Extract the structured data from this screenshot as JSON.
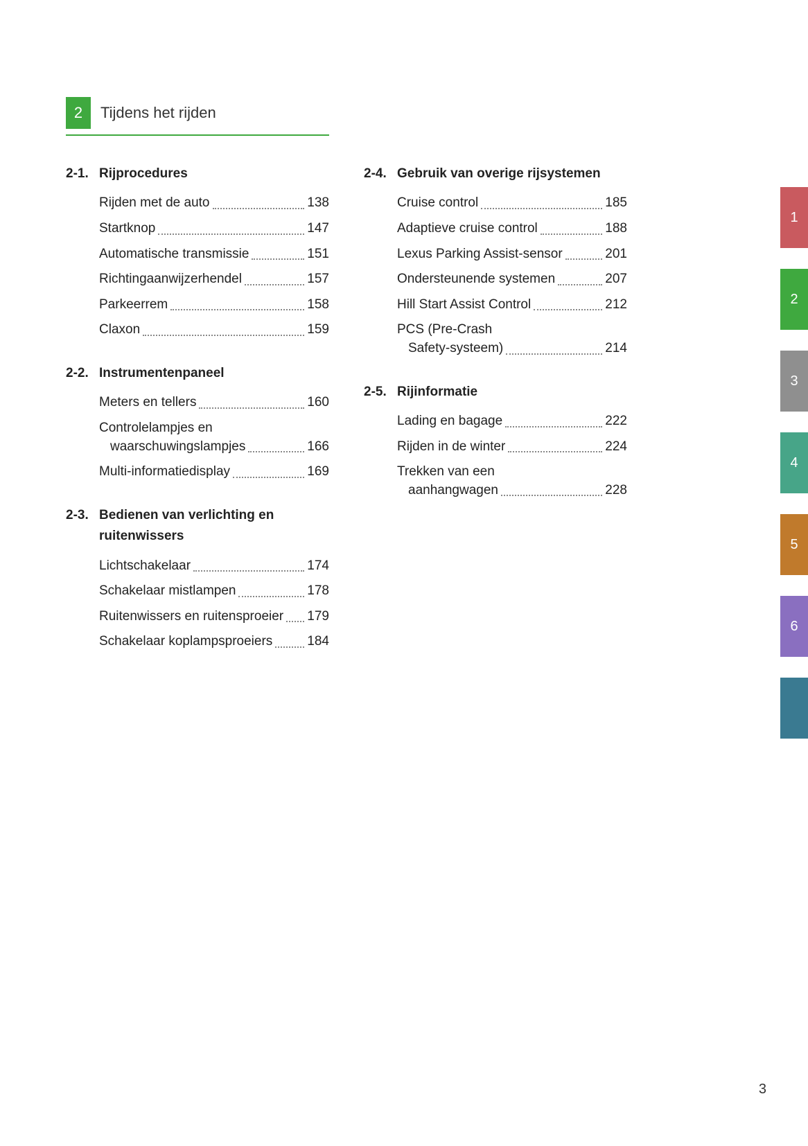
{
  "chapter": {
    "number": "2",
    "title": "Tijdens het rijden"
  },
  "accent": "#3fa93f",
  "page_number": "3",
  "columns": [
    {
      "sections": [
        {
          "num": "2-1.",
          "title": "Rijprocedures",
          "entries": [
            {
              "label": "Rijden met de auto",
              "page": "138"
            },
            {
              "label": "Startknop",
              "page": "147"
            },
            {
              "label": "Automatische transmissie",
              "page": "151"
            },
            {
              "label": "Richtingaanwijzerhendel",
              "page": "157"
            },
            {
              "label": "Parkeerrem",
              "page": "158"
            },
            {
              "label": "Claxon",
              "page": "159"
            }
          ]
        },
        {
          "num": "2-2.",
          "title": "Instrumentenpaneel",
          "entries": [
            {
              "label": "Meters en tellers",
              "page": "160"
            },
            {
              "label": "Controlelampjes en",
              "cont": "waarschuwingslampjes",
              "page": "166"
            },
            {
              "label": "Multi-informatiedisplay",
              "page": "169"
            }
          ]
        },
        {
          "num": "2-3.",
          "title": "Bedienen van verlichting en ruitenwissers",
          "entries": [
            {
              "label": "Lichtschakelaar",
              "page": "174"
            },
            {
              "label": "Schakelaar mistlampen",
              "page": "178"
            },
            {
              "label": "Ruitenwissers en ruitensproeier",
              "page": "179"
            },
            {
              "label": "Schakelaar koplampsproeiers",
              "page": "184"
            }
          ]
        }
      ]
    },
    {
      "sections": [
        {
          "num": "2-4.",
          "title": "Gebruik van overige rijsystemen",
          "entries": [
            {
              "label": "Cruise control",
              "page": "185"
            },
            {
              "label": "Adaptieve cruise control",
              "page": "188"
            },
            {
              "label": "Lexus Parking Assist-sensor",
              "page": "201"
            },
            {
              "label": "Ondersteunende systemen",
              "page": "207"
            },
            {
              "label": "Hill Start Assist Control",
              "page": "212"
            },
            {
              "label": "PCS (Pre-Crash",
              "cont": "Safety-systeem)",
              "page": "214"
            }
          ]
        },
        {
          "num": "2-5.",
          "title": "Rijinformatie",
          "entries": [
            {
              "label": "Lading en bagage",
              "page": "222"
            },
            {
              "label": "Rijden in de winter",
              "page": "224"
            },
            {
              "label": "Trekken van een",
              "cont": "aanhangwagen",
              "page": "228"
            }
          ]
        }
      ]
    }
  ],
  "tabs": [
    {
      "n": "1",
      "color": "#c95a5f"
    },
    {
      "n": "2",
      "color": "#3fa93f"
    },
    {
      "n": "3",
      "color": "#8f8f8f"
    },
    {
      "n": "4",
      "color": "#47a588"
    },
    {
      "n": "5",
      "color": "#c07a2c"
    },
    {
      "n": "6",
      "color": "#8a6fc0"
    },
    {
      "n": "",
      "color": "#3a7a91"
    }
  ]
}
